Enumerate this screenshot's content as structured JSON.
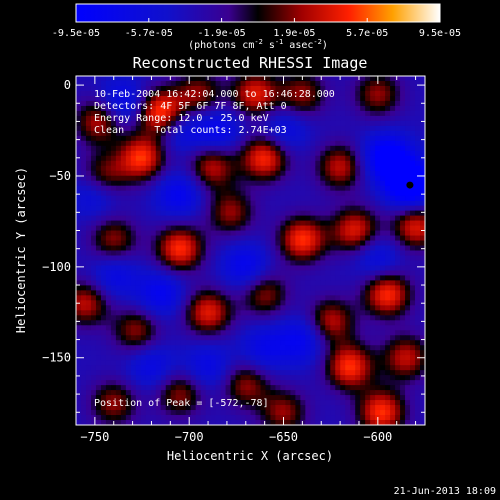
{
  "chart_data": {
    "type": "heatmap",
    "title": "Reconstructed RHESSI Image",
    "xlabel": "Heliocentric X (arcsec)",
    "ylabel": "Heliocentric Y (arcsec)",
    "xlim": [
      -760,
      -575
    ],
    "ylim": [
      -187,
      5
    ],
    "x_ticks": [
      -750,
      -700,
      -650,
      -600
    ],
    "y_ticks": [
      0,
      -50,
      -100,
      -150
    ],
    "colorbar": {
      "ticks": [
        "-9.5e-05",
        "-5.7e-05",
        "-1.9e-05",
        "1.9e-05",
        "5.7e-05",
        "9.5e-05"
      ],
      "units_prefix": "(photons cm",
      "units_sup1": "-2",
      "units_mid": " s",
      "units_sup2": "-1",
      "units_suffix": " asec",
      "units_sup3": "-2",
      "units_close": ")",
      "range": [
        -9.5e-05,
        9.5e-05
      ]
    },
    "annotations": [
      "10-Feb-2004 16:42:04.000 to 16:46:28.000",
      "Detectors: 4F 5F 6F 7F 8F, Att 0",
      "Energy Range: 12.0 - 25.0 keV",
      "Clean     Total counts: 2.74E+03"
    ],
    "peak_label": "Position of Peak = [-572,-78]",
    "blobs": [
      {
        "x": -748,
        "y": -20,
        "v": 0.7
      },
      {
        "x": -715,
        "y": -15,
        "v": 1.0
      },
      {
        "x": -695,
        "y": -5,
        "v": 0.6
      },
      {
        "x": -665,
        "y": -5,
        "v": 0.8
      },
      {
        "x": -640,
        "y": -5,
        "v": 0.6
      },
      {
        "x": -600,
        "y": -5,
        "v": 0.6
      },
      {
        "x": -725,
        "y": -40,
        "v": 0.9
      },
      {
        "x": -745,
        "y": -50,
        "v": 0.6
      },
      {
        "x": -688,
        "y": -45,
        "v": 0.7
      },
      {
        "x": -660,
        "y": -40,
        "v": 0.9
      },
      {
        "x": -620,
        "y": -45,
        "v": 0.7
      },
      {
        "x": -740,
        "y": -85,
        "v": 0.6
      },
      {
        "x": -705,
        "y": -90,
        "v": 0.9
      },
      {
        "x": -678,
        "y": -70,
        "v": 0.6
      },
      {
        "x": -640,
        "y": -85,
        "v": 0.9
      },
      {
        "x": -612,
        "y": -80,
        "v": 0.8
      },
      {
        "x": -595,
        "y": -115,
        "v": 0.9
      },
      {
        "x": -580,
        "y": -78,
        "v": 0.8
      },
      {
        "x": -755,
        "y": -120,
        "v": 0.7
      },
      {
        "x": -728,
        "y": -135,
        "v": 0.6
      },
      {
        "x": -690,
        "y": -125,
        "v": 0.8
      },
      {
        "x": -660,
        "y": -115,
        "v": 0.6
      },
      {
        "x": -625,
        "y": -130,
        "v": 0.7
      },
      {
        "x": -615,
        "y": -155,
        "v": 0.9
      },
      {
        "x": -585,
        "y": -150,
        "v": 0.7
      },
      {
        "x": -740,
        "y": -175,
        "v": 0.6
      },
      {
        "x": -705,
        "y": -170,
        "v": 0.6
      },
      {
        "x": -670,
        "y": -165,
        "v": 0.6
      },
      {
        "x": -650,
        "y": -180,
        "v": 0.6
      },
      {
        "x": -598,
        "y": -180,
        "v": 0.9
      },
      {
        "x": -735,
        "y": -10,
        "v": -0.5
      },
      {
        "x": -705,
        "y": -25,
        "v": -0.4
      },
      {
        "x": -685,
        "y": -25,
        "v": -0.5
      },
      {
        "x": -650,
        "y": -25,
        "v": -0.4
      },
      {
        "x": -595,
        "y": -40,
        "v": -0.8
      },
      {
        "x": -583,
        "y": -55,
        "v": -1.0
      },
      {
        "x": -750,
        "y": -60,
        "v": -0.4
      },
      {
        "x": -705,
        "y": -60,
        "v": -0.5
      },
      {
        "x": -670,
        "y": -100,
        "v": -0.5
      },
      {
        "x": -600,
        "y": -95,
        "v": -0.4
      },
      {
        "x": -740,
        "y": -105,
        "v": -0.4
      },
      {
        "x": -715,
        "y": -115,
        "v": -0.5
      },
      {
        "x": -640,
        "y": -140,
        "v": -0.5
      },
      {
        "x": -720,
        "y": -155,
        "v": -0.4
      },
      {
        "x": -660,
        "y": -145,
        "v": -0.4
      },
      {
        "x": -690,
        "y": -155,
        "v": -0.4
      }
    ]
  },
  "footer": {
    "date_label": "21-Jun-2013 18:09"
  },
  "colors": {
    "background": "#000000",
    "text": "#ffffff",
    "peak_marker": "#000000"
  }
}
